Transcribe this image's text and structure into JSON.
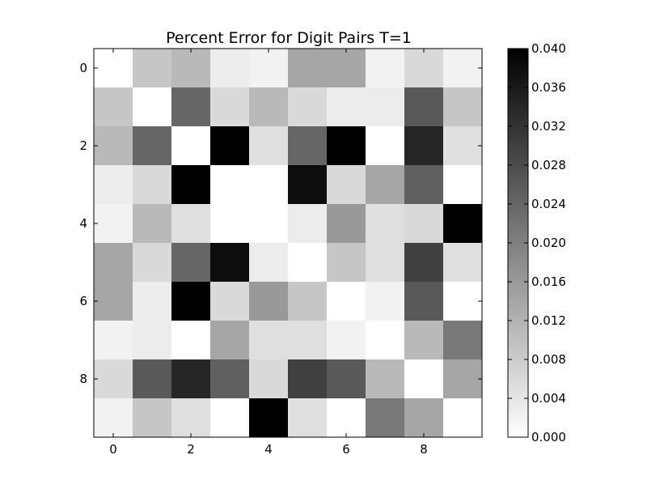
{
  "chart_data": {
    "type": "heatmap",
    "title": "Percent Error for Digit Pairs T=1",
    "xlabel": "",
    "ylabel": "",
    "x_ticks": [
      "0",
      "2",
      "4",
      "6",
      "8"
    ],
    "y_ticks": [
      "0",
      "2",
      "4",
      "6",
      "8"
    ],
    "x_tick_values": [
      0,
      2,
      4,
      6,
      8
    ],
    "y_tick_values": [
      0,
      2,
      4,
      6,
      8
    ],
    "colormap": "gray_r",
    "colorbar": {
      "min": 0.0,
      "max": 0.04,
      "ticks": [
        0.0,
        0.004,
        0.008,
        0.012,
        0.016,
        0.02,
        0.024,
        0.028,
        0.032,
        0.036,
        0.04
      ],
      "tick_labels": [
        "0.000",
        "0.004",
        "0.008",
        "0.012",
        "0.016",
        "0.020",
        "0.024",
        "0.028",
        "0.032",
        "0.036",
        "0.040"
      ]
    },
    "grid": false,
    "matrix": [
      [
        0.0,
        0.009,
        0.011,
        0.003,
        0.002,
        0.014,
        0.014,
        0.002,
        0.006,
        0.002
      ],
      [
        0.009,
        0.0,
        0.024,
        0.006,
        0.011,
        0.006,
        0.003,
        0.003,
        0.026,
        0.009
      ],
      [
        0.011,
        0.024,
        0.0,
        0.04,
        0.005,
        0.024,
        0.04,
        0.0,
        0.034,
        0.005
      ],
      [
        0.003,
        0.006,
        0.04,
        0.0,
        0.0,
        0.038,
        0.006,
        0.014,
        0.025,
        0.0
      ],
      [
        0.002,
        0.011,
        0.005,
        0.0,
        0.0,
        0.003,
        0.016,
        0.005,
        0.006,
        0.04
      ],
      [
        0.014,
        0.006,
        0.024,
        0.038,
        0.003,
        0.0,
        0.009,
        0.005,
        0.03,
        0.005
      ],
      [
        0.014,
        0.003,
        0.04,
        0.006,
        0.016,
        0.009,
        0.0,
        0.002,
        0.026,
        0.0
      ],
      [
        0.002,
        0.003,
        0.0,
        0.014,
        0.005,
        0.005,
        0.002,
        0.0,
        0.011,
        0.021
      ],
      [
        0.006,
        0.026,
        0.034,
        0.025,
        0.006,
        0.03,
        0.026,
        0.011,
        0.0,
        0.014
      ],
      [
        0.002,
        0.009,
        0.005,
        0.0,
        0.04,
        0.005,
        0.0,
        0.021,
        0.014,
        0.0
      ]
    ]
  }
}
